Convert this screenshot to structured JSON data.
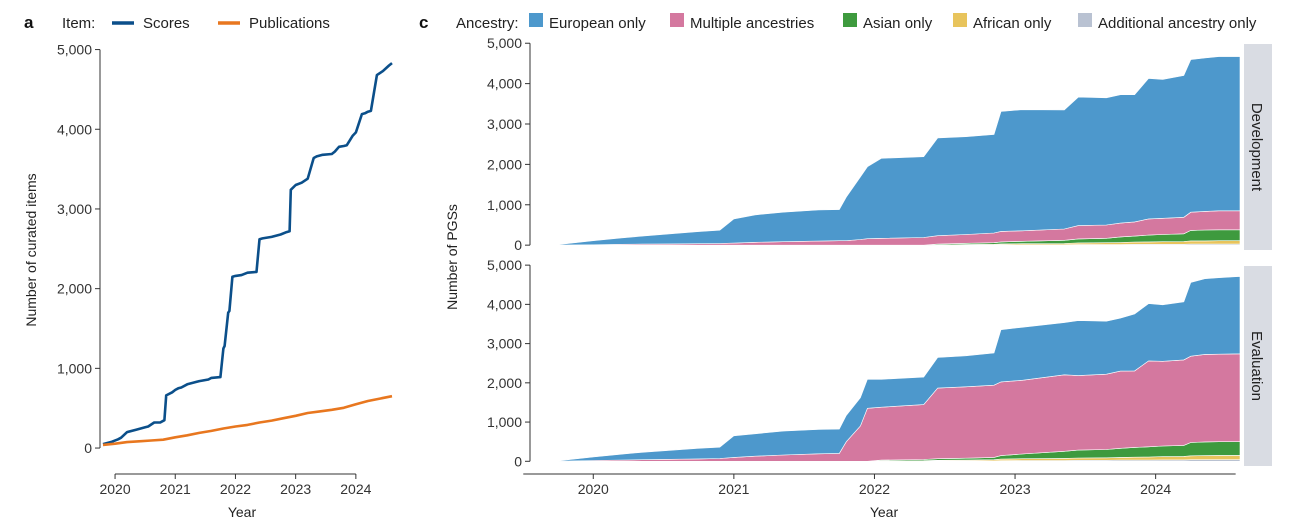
{
  "panel_a": {
    "letter": "a",
    "legend_title": "Item:",
    "chart_data": {
      "type": "line",
      "xlabel": "Year",
      "ylabel": "Number of curated items",
      "xlim": [
        2019.75,
        2024.7
      ],
      "ylim": [
        -150,
        5120
      ],
      "xticks": [
        2020,
        2021,
        2022,
        2023,
        2024
      ],
      "xtick_labels": [
        "2020",
        "2021",
        "2022",
        "2023",
        "2024"
      ],
      "yticks": [
        0,
        1000,
        2000,
        3000,
        4000,
        5000
      ],
      "ytick_labels": [
        "0",
        "1,000",
        "2,000",
        "3,000",
        "4,000",
        "5,000"
      ],
      "legend_position": "top",
      "grid": false,
      "series": [
        {
          "name": "Scores",
          "color": "#0b4f8a",
          "x": [
            2019.8,
            2019.95,
            2020.05,
            2020.1,
            2020.2,
            2020.35,
            2020.5,
            2020.55,
            2020.65,
            2020.75,
            2020.82,
            2020.85,
            2020.95,
            2021.0,
            2021.05,
            2021.1,
            2021.2,
            2021.35,
            2021.4,
            2021.55,
            2021.6,
            2021.75,
            2021.8,
            2021.82,
            2021.88,
            2021.9,
            2021.95,
            2022.0,
            2022.1,
            2022.2,
            2022.35,
            2022.4,
            2022.45,
            2022.6,
            2022.75,
            2022.85,
            2022.9,
            2022.92,
            2023.0,
            2023.1,
            2023.2,
            2023.3,
            2023.35,
            2023.45,
            2023.6,
            2023.65,
            2023.72,
            2023.8,
            2023.85,
            2023.95,
            2024.0,
            2024.1,
            2024.15,
            2024.2,
            2024.25,
            2024.35,
            2024.45,
            2024.55,
            2024.6
          ],
          "y": [
            50,
            80,
            110,
            130,
            200,
            230,
            260,
            270,
            320,
            320,
            350,
            660,
            700,
            730,
            750,
            760,
            800,
            830,
            840,
            860,
            880,
            890,
            1250,
            1280,
            1700,
            1720,
            2150,
            2160,
            2170,
            2200,
            2210,
            2620,
            2630,
            2650,
            2680,
            2710,
            2720,
            3240,
            3300,
            3330,
            3380,
            3640,
            3660,
            3680,
            3690,
            3720,
            3780,
            3790,
            3800,
            3920,
            3960,
            4190,
            4200,
            4220,
            4230,
            4680,
            4730,
            4800,
            4830
          ]
        },
        {
          "name": "Publications",
          "color": "#e8771f",
          "x": [
            2019.8,
            2020.0,
            2020.2,
            2020.4,
            2020.6,
            2020.8,
            2021.0,
            2021.2,
            2021.4,
            2021.6,
            2021.8,
            2022.0,
            2022.2,
            2022.4,
            2022.6,
            2022.8,
            2023.0,
            2023.2,
            2023.4,
            2023.6,
            2023.8,
            2024.0,
            2024.2,
            2024.4,
            2024.6
          ],
          "y": [
            40,
            55,
            75,
            85,
            95,
            105,
            135,
            160,
            190,
            215,
            245,
            270,
            290,
            320,
            345,
            375,
            405,
            440,
            460,
            480,
            505,
            550,
            590,
            620,
            650
          ]
        }
      ]
    }
  },
  "panel_c": {
    "letter": "c",
    "legend_title": "Ancestry:",
    "chart_data": {
      "type": "area",
      "stacked": true,
      "xlabel": "Year",
      "ylabel": "Number of PGSs",
      "xlim": [
        2019.55,
        2024.6
      ],
      "ylim": [
        -120,
        5080
      ],
      "xticks": [
        2020,
        2021,
        2022,
        2023,
        2024
      ],
      "xtick_labels": [
        "2020",
        "2021",
        "2022",
        "2023",
        "2024"
      ],
      "yticks": [
        0,
        1000,
        2000,
        3000,
        4000,
        5000
      ],
      "ytick_labels": [
        "0",
        "1,000",
        "2,000",
        "3,000",
        "4,000",
        "5,000"
      ],
      "legend_position": "top",
      "grid": false,
      "categories": [
        "European only",
        "Multiple ancestries",
        "Asian only",
        "African only",
        "Additional ancestry only"
      ],
      "colors": [
        "#4d98cc",
        "#d4789f",
        "#3e9a3e",
        "#e8c45c",
        "#b9c2d2"
      ],
      "facets": [
        {
          "label": "Development",
          "x": [
            2019.75,
            2020.0,
            2020.2,
            2020.35,
            2020.55,
            2020.75,
            2020.9,
            2021.0,
            2021.15,
            2021.35,
            2021.6,
            2021.75,
            2021.8,
            2021.9,
            2021.95,
            2022.05,
            2022.35,
            2022.45,
            2022.65,
            2022.85,
            2022.9,
            2023.05,
            2023.35,
            2023.45,
            2023.65,
            2023.75,
            2023.85,
            2023.95,
            2024.05,
            2024.2,
            2024.25,
            2024.35,
            2024.45,
            2024.6
          ],
          "series": [
            {
              "name": "European only",
              "values": [
                10,
                100,
                160,
                200,
                250,
                300,
                330,
                600,
                680,
                730,
                770,
                770,
                1080,
                1550,
                1780,
                1980,
                2000,
                2420,
                2420,
                2440,
                2970,
                3000,
                2950,
                3180,
                3150,
                3180,
                3150,
                3480,
                3440,
                3510,
                3780,
                3800,
                3820,
                3820
              ]
            },
            {
              "name": "Multiple ancestries",
              "values": [
                3,
                10,
                20,
                25,
                30,
                35,
                40,
                50,
                70,
                85,
                100,
                110,
                110,
                140,
                160,
                170,
                190,
                210,
                220,
                240,
                260,
                260,
                280,
                330,
                330,
                340,
                350,
                400,
                400,
                410,
                450,
                460,
                470,
                470
              ]
            },
            {
              "name": "Asian only",
              "values": [
                0,
                0,
                0,
                0,
                0,
                0,
                0,
                0,
                0,
                0,
                0,
                0,
                0,
                0,
                0,
                0,
                0,
                20,
                30,
                40,
                50,
                60,
                80,
                100,
                110,
                140,
                150,
                170,
                180,
                190,
                260,
                270,
                270,
                270
              ]
            },
            {
              "name": "African only",
              "values": [
                0,
                0,
                0,
                0,
                0,
                0,
                0,
                0,
                0,
                0,
                0,
                0,
                0,
                0,
                0,
                0,
                0,
                5,
                10,
                15,
                20,
                25,
                30,
                40,
                45,
                50,
                55,
                60,
                65,
                70,
                80,
                80,
                85,
                85
              ]
            },
            {
              "name": "Additional ancestry only",
              "values": [
                0,
                0,
                0,
                0,
                0,
                0,
                0,
                0,
                0,
                0,
                0,
                0,
                0,
                0,
                0,
                0,
                0,
                0,
                5,
                5,
                10,
                10,
                10,
                15,
                15,
                15,
                20,
                20,
                20,
                20,
                25,
                25,
                25,
                25
              ]
            }
          ]
        },
        {
          "label": "Evaluation",
          "x": [
            2019.75,
            2020.0,
            2020.2,
            2020.35,
            2020.55,
            2020.75,
            2020.9,
            2021.0,
            2021.15,
            2021.35,
            2021.6,
            2021.75,
            2021.8,
            2021.9,
            2021.95,
            2022.05,
            2022.35,
            2022.45,
            2022.65,
            2022.85,
            2022.9,
            2023.05,
            2023.35,
            2023.45,
            2023.65,
            2023.75,
            2023.85,
            2023.95,
            2024.05,
            2024.2,
            2024.25,
            2024.35,
            2024.45,
            2024.6
          ],
          "series": [
            {
              "name": "European only",
              "values": [
                10,
                90,
                150,
                190,
                230,
                270,
                290,
                550,
                570,
                610,
                620,
                620,
                670,
                720,
                740,
                710,
                700,
                780,
                790,
                820,
                1330,
                1350,
                1330,
                1400,
                1350,
                1350,
                1450,
                1460,
                1440,
                1480,
                1880,
                1930,
                1950,
                1970
              ]
            },
            {
              "name": "Multiple ancestries",
              "values": [
                3,
                20,
                30,
                40,
                50,
                60,
                70,
                100,
                130,
                160,
                190,
                200,
                500,
                900,
                1350,
                1350,
                1400,
                1800,
                1820,
                1840,
                1880,
                1880,
                1950,
                1900,
                1920,
                1970,
                1950,
                2190,
                2160,
                2180,
                2200,
                2230,
                2230,
                2240
              ]
            },
            {
              "name": "Asian only",
              "values": [
                0,
                0,
                0,
                0,
                0,
                0,
                0,
                0,
                0,
                0,
                0,
                0,
                0,
                0,
                0,
                20,
                30,
                40,
                50,
                60,
                90,
                120,
                180,
                200,
                210,
                230,
                250,
                260,
                270,
                280,
                340,
                350,
                350,
                350
              ]
            },
            {
              "name": "African only",
              "values": [
                0,
                0,
                0,
                0,
                0,
                0,
                0,
                0,
                0,
                0,
                0,
                0,
                0,
                0,
                0,
                5,
                10,
                15,
                20,
                30,
                40,
                45,
                55,
                60,
                65,
                70,
                75,
                80,
                85,
                90,
                100,
                105,
                110,
                110
              ]
            },
            {
              "name": "Additional ancestry only",
              "values": [
                0,
                0,
                0,
                0,
                0,
                0,
                0,
                0,
                0,
                0,
                0,
                0,
                0,
                0,
                0,
                5,
                5,
                10,
                10,
                10,
                15,
                20,
                20,
                25,
                25,
                30,
                30,
                30,
                35,
                35,
                40,
                40,
                40,
                40
              ]
            }
          ]
        }
      ]
    }
  }
}
